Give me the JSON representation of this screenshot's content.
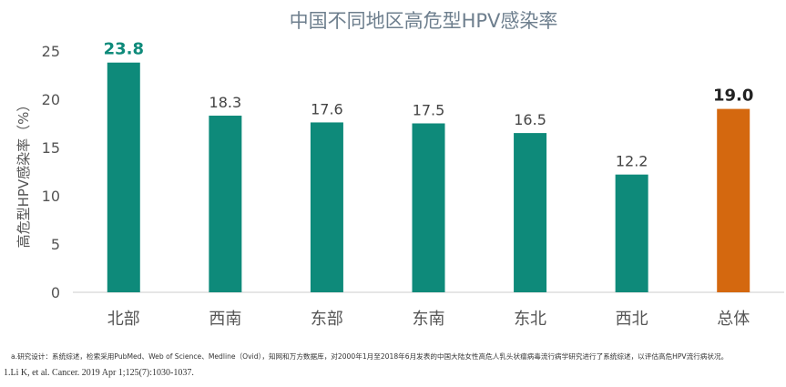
{
  "chart_data": {
    "type": "bar",
    "title": "中国不同地区高危型HPV感染率",
    "ylabel": "高危型HPV感染率（%）",
    "xlabel": "",
    "categories": [
      "北部",
      "西南",
      "东部",
      "东南",
      "东北",
      "西北",
      "总体"
    ],
    "values": [
      23.8,
      18.3,
      17.6,
      17.5,
      16.5,
      12.2,
      19.0
    ],
    "value_labels": [
      "23.8",
      "18.3",
      "17.6",
      "17.5",
      "16.5",
      "12.2",
      "19.0"
    ],
    "highlight": [
      true,
      false,
      false,
      false,
      false,
      false,
      true
    ],
    "bar_colors": [
      "#0e8a7a",
      "#0e8a7a",
      "#0e8a7a",
      "#0e8a7a",
      "#0e8a7a",
      "#0e8a7a",
      "#d4680f"
    ],
    "label_colors": [
      "#0e8a7a",
      "#444444",
      "#444444",
      "#444444",
      "#444444",
      "#444444",
      "#222222"
    ],
    "ylim": [
      0,
      25
    ],
    "yticks": [
      0,
      5,
      10,
      15,
      20,
      25
    ],
    "grid": false,
    "legend": "none"
  },
  "colors": {
    "title": "#6e7f8e",
    "axis_text": "#555555",
    "axis_line": "#cccccc"
  },
  "footnote": "a.研究设计：系统综述，检索采用PubMed、Web of Science、Medline（Ovid），知网和万方数据库，对2000年1月至2018年6月发表的中国大陆女性高危人乳头状瘤病毒流行病学研究进行了系统综述，以评估高危HPV流行病状况。",
  "reference": "1.Li K, et al. Cancer. 2019 Apr 1;125(7):1030-1037."
}
